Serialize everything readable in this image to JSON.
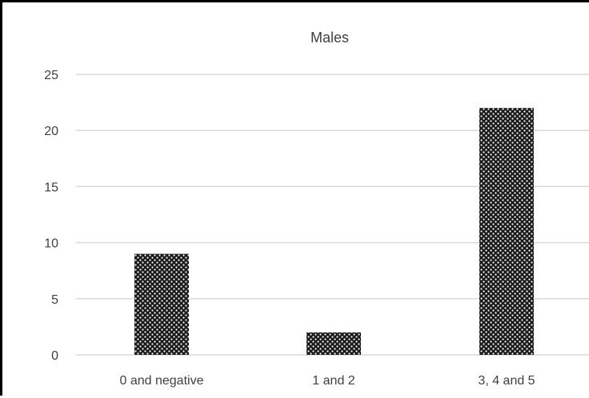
{
  "chart_data": {
    "type": "bar",
    "title": "Males",
    "xlabel": "",
    "ylabel": "",
    "categories": [
      "0 and negative",
      "1 and 2",
      "3, 4 and 5"
    ],
    "values": [
      9,
      2,
      22
    ],
    "ylim": [
      0,
      25
    ],
    "yticks": [
      0,
      5,
      10,
      15,
      20,
      25
    ],
    "grid": true,
    "legend": "none",
    "colors": {
      "bar_fill": "#1a1a1a",
      "bar_dots": "#ffffff",
      "grid": "#d9d9d9",
      "text": "#404040"
    }
  }
}
